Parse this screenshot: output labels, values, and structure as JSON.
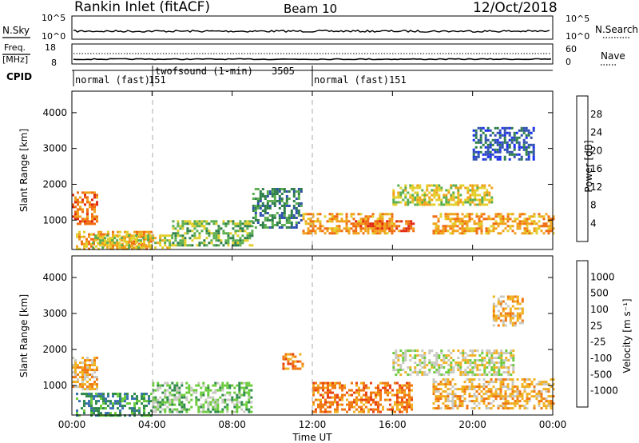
{
  "header": {
    "station": "Rankin Inlet (fitACF)",
    "beam": "Beam 10",
    "date": "12/Oct/2018"
  },
  "top_panels": {
    "nsky_label": "N.Sky",
    "nsky_ticks": [
      "10^5",
      "10^0"
    ],
    "nsearch_label": "N.Search",
    "nsearch_ticks": [
      "10^5",
      "10^0"
    ],
    "freq_label": "Freq.",
    "freq_unit": "[MHz]",
    "freq_ticks": [
      "18",
      "8"
    ],
    "nave_label": "Nave",
    "nave_ticks": [
      "60",
      "0"
    ],
    "cpid_label": "CPID"
  },
  "cpid_segments": [
    {
      "label": "normal (fast)",
      "id": "151",
      "start_h": 0.0,
      "end_h": 4.0
    },
    {
      "label": "twofsound (1-min)",
      "id": "3505",
      "start_h": 4.0,
      "end_h": 12.0
    },
    {
      "label": "normal (fast)",
      "id": "151",
      "start_h": 12.0,
      "end_h": 24.0
    }
  ],
  "chart_data": [
    {
      "type": "heatmap",
      "panel": "power",
      "xlabel": "",
      "ylabel": "Slant Range [km]",
      "ylim": [
        180,
        4600
      ],
      "xlim_hours": [
        0,
        24
      ],
      "yticks": [
        1000,
        2000,
        3000,
        4000
      ],
      "colorbar": {
        "label": "Power [dB]",
        "ticks": [
          "4",
          "8",
          "12",
          "16",
          "20",
          "24",
          "28"
        ],
        "colors": [
          "#1a2cf0",
          "#3050b0",
          "#2e7f4a",
          "#5bae4f",
          "#e2cf2a",
          "#f0a21a",
          "#f06c10",
          "#e02810"
        ]
      },
      "echo_regions": [
        {
          "t0": 0.0,
          "t1": 1.2,
          "r0": 900,
          "r1": 1800,
          "level": 6
        },
        {
          "t0": 0.2,
          "t1": 4.0,
          "r0": 200,
          "r1": 700,
          "level": 5
        },
        {
          "t0": 1.0,
          "t1": 5.0,
          "r0": 200,
          "r1": 600,
          "level": 4
        },
        {
          "t0": 5.0,
          "t1": 9.0,
          "r0": 300,
          "r1": 1000,
          "level": 3
        },
        {
          "t0": 9.0,
          "t1": 11.5,
          "r0": 800,
          "r1": 1900,
          "level": 2
        },
        {
          "t0": 11.5,
          "t1": 16.0,
          "r0": 600,
          "r1": 1200,
          "level": 5
        },
        {
          "t0": 14.0,
          "t1": 17.0,
          "r0": 700,
          "r1": 1000,
          "level": 6
        },
        {
          "t0": 16.0,
          "t1": 21.0,
          "r0": 1400,
          "r1": 2000,
          "level": 4
        },
        {
          "t0": 18.0,
          "t1": 24.0,
          "r0": 600,
          "r1": 1200,
          "level": 5
        },
        {
          "t0": 20.0,
          "t1": 23.0,
          "r0": 2700,
          "r1": 3600,
          "level": 1
        }
      ]
    },
    {
      "type": "heatmap",
      "panel": "velocity",
      "xlabel": "Time UT",
      "ylabel": "Slant Range [km]",
      "ylim": [
        180,
        4600
      ],
      "xlim_hours": [
        0,
        24
      ],
      "yticks": [
        1000,
        2000,
        3000,
        4000
      ],
      "xtick_labels": [
        "00:00",
        "04:00",
        "08:00",
        "12:00",
        "16:00",
        "20:00",
        "00:00"
      ],
      "colorbar": {
        "label": "Velocity [m s⁻¹]",
        "ticks": [
          "1000",
          "500",
          "100",
          "25",
          "-25",
          "-100",
          "-500",
          "-1000"
        ],
        "colors": [
          "#1a2cb0",
          "#3a70b0",
          "#2e8a4a",
          "#6acb3a",
          "#c8c8c0",
          "#f0b020",
          "#f07810",
          "#e84010",
          "#e00000"
        ]
      },
      "echo_regions": [
        {
          "t0": 0.0,
          "t1": 1.2,
          "r0": 900,
          "r1": 1800,
          "level": 5
        },
        {
          "t0": 0.2,
          "t1": 4.0,
          "r0": 200,
          "r1": 800,
          "level": 2
        },
        {
          "t0": 4.0,
          "t1": 9.0,
          "r0": 300,
          "r1": 1100,
          "level": 3
        },
        {
          "t0": 10.5,
          "t1": 11.5,
          "r0": 1500,
          "r1": 1900,
          "level": 6
        },
        {
          "t0": 12.0,
          "t1": 17.0,
          "r0": 300,
          "r1": 1100,
          "level": 6
        },
        {
          "t0": 16.0,
          "t1": 22.0,
          "r0": 1300,
          "r1": 2000,
          "level": 4
        },
        {
          "t0": 18.0,
          "t1": 24.0,
          "r0": 400,
          "r1": 1200,
          "level": 5
        },
        {
          "t0": 21.0,
          "t1": 22.5,
          "r0": 2700,
          "r1": 3500,
          "level": 5
        }
      ]
    }
  ]
}
